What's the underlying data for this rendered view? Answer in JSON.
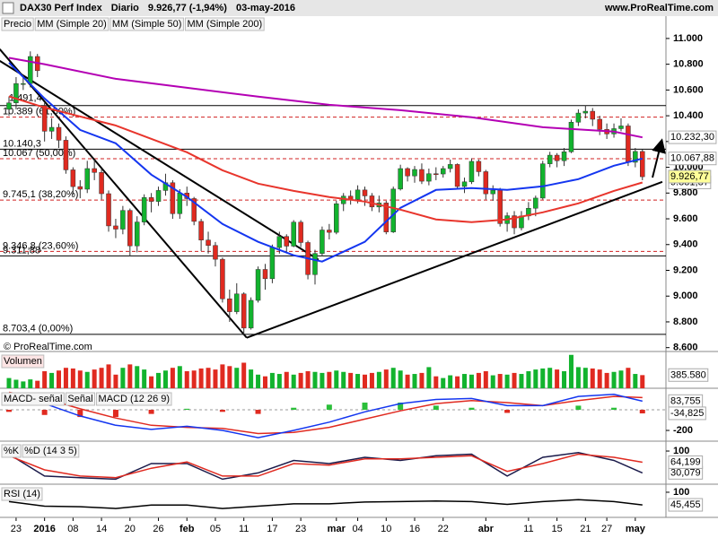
{
  "header": {
    "title": "DAX30 Perf Index",
    "period": "Diario",
    "change": "9.926,77 (-1,94%)",
    "date": "03-may-2016",
    "site": "www.ProRealTime.com"
  },
  "chart_data": [
    {
      "type": "candlestick",
      "price_name": "Precio",
      "copyright": "© ProRealTime.com",
      "up_color": "#12b32e",
      "down_color": "#e02a20",
      "categories": [
        null,
        "23",
        null,
        null,
        null,
        "2016",
        null,
        null,
        null,
        "08",
        null,
        null,
        null,
        "14",
        null,
        null,
        null,
        "20",
        null,
        null,
        null,
        "26",
        null,
        null,
        null,
        "feb",
        null,
        null,
        null,
        "05",
        null,
        null,
        null,
        "11",
        null,
        null,
        null,
        "17",
        null,
        null,
        null,
        "23",
        null,
        null,
        null,
        null,
        "mar",
        null,
        null,
        "04",
        null,
        null,
        null,
        "10",
        null,
        null,
        null,
        "16",
        null,
        null,
        null,
        "22",
        null,
        null,
        null,
        null,
        null,
        "abr",
        null,
        null,
        null,
        null,
        null,
        "11",
        null,
        null,
        null,
        "15",
        null,
        null,
        null,
        "21",
        null,
        null,
        "27",
        null,
        null,
        null,
        "may",
        null
      ],
      "open": [
        10450,
        10500,
        10650,
        10650,
        10860,
        10480,
        10280,
        10310,
        10210,
        9980,
        9850,
        9830,
        9990,
        9960,
        9795,
        9545,
        9520,
        9665,
        9390,
        9575,
        9765,
        9735,
        9820,
        9880,
        9640,
        9800,
        9757,
        9580,
        9435,
        9393,
        9286,
        8979,
        8879,
        9017,
        8752,
        8967,
        9207,
        9135,
        9377,
        9463,
        9388,
        9574,
        9416,
        9167,
        9331,
        9513,
        9495,
        9717,
        9776,
        9751,
        9824,
        9778,
        9692,
        9723,
        9498,
        9831,
        9990,
        9933,
        9983,
        9892,
        9950,
        9948,
        9990,
        10022,
        9851,
        9887,
        10046,
        9966,
        9794,
        9822,
        9563,
        9624,
        9530,
        9622,
        9682,
        9761,
        10027,
        10094,
        10051,
        10120,
        10350,
        10421,
        10435,
        10373,
        10294,
        10259,
        10300,
        10321,
        10039,
        10123
      ],
      "high": [
        10550,
        10700,
        10720,
        10900,
        10880,
        10500,
        10380,
        10340,
        10240,
        10000,
        9900,
        10050,
        10060,
        9990,
        9820,
        9600,
        9700,
        9680,
        9620,
        9790,
        9800,
        9850,
        9950,
        9900,
        9830,
        9850,
        9770,
        9600,
        9500,
        9420,
        9300,
        9050,
        9100,
        9030,
        8990,
        9230,
        9250,
        9400,
        9500,
        9480,
        9590,
        9590,
        9430,
        9360,
        9540,
        9560,
        9740,
        9800,
        9820,
        9860,
        9850,
        9800,
        9780,
        9740,
        9850,
        10020,
        10000,
        10010,
        10030,
        9990,
        10000,
        10010,
        10060,
        10030,
        9920,
        10070,
        10060,
        9980,
        9860,
        9840,
        9650,
        9660,
        9660,
        9730,
        9780,
        10050,
        10120,
        10110,
        10150,
        10370,
        10450,
        10480,
        10460,
        10400,
        10340,
        10340,
        10380,
        10340,
        10150,
        10140
      ],
      "low": [
        10400,
        10450,
        10600,
        10620,
        10700,
        10200,
        10220,
        10150,
        9950,
        9790,
        9760,
        9800,
        9900,
        9750,
        9500,
        9450,
        9480,
        9310,
        9340,
        9550,
        9650,
        9700,
        9780,
        9600,
        9600,
        9700,
        9550,
        9350,
        9330,
        9230,
        8950,
        8800,
        8860,
        8700,
        8740,
        8950,
        9050,
        9100,
        9330,
        9340,
        9380,
        9380,
        9130,
        9090,
        9310,
        9440,
        9480,
        9660,
        9710,
        9720,
        9700,
        9660,
        9650,
        9480,
        9490,
        9820,
        9890,
        9880,
        9870,
        9860,
        9900,
        9920,
        9960,
        9830,
        9800,
        9870,
        9930,
        9750,
        9740,
        9540,
        9500,
        9480,
        9510,
        9590,
        9620,
        9750,
        10000,
        10000,
        10010,
        10110,
        10320,
        10380,
        10320,
        10250,
        10220,
        10230,
        10280,
        10010,
        10000,
        9900
      ],
      "close": [
        10500,
        10650,
        10650,
        10860,
        10750,
        10280,
        10310,
        10210,
        9980,
        9850,
        9830,
        9990,
        9960,
        9795,
        9545,
        9520,
        9665,
        9390,
        9575,
        9765,
        9735,
        9820,
        9880,
        9640,
        9800,
        9757,
        9580,
        9435,
        9393,
        9286,
        8979,
        8879,
        9017,
        8752,
        8967,
        9207,
        9135,
        9377,
        9463,
        9388,
        9574,
        9416,
        9167,
        9331,
        9513,
        9495,
        9717,
        9776,
        9751,
        9824,
        9778,
        9692,
        9723,
        9498,
        9831,
        9990,
        9933,
        9983,
        9892,
        9950,
        9948,
        9990,
        10022,
        9851,
        9887,
        10046,
        9966,
        9794,
        9822,
        9563,
        9624,
        9530,
        9622,
        9682,
        9761,
        10027,
        10094,
        10051,
        10120,
        10350,
        10421,
        10435,
        10373,
        10294,
        10259,
        10300,
        10321,
        10039,
        10123,
        9926.77
      ],
      "close_label": "9.926,77",
      "series": [
        {
          "name": "MM (Simple 20)",
          "color": "#1436f0",
          "x": [
            0,
            5,
            10,
            15,
            20,
            25,
            30,
            35,
            40,
            44,
            50,
            55,
            60,
            65,
            70,
            75,
            80,
            85,
            89
          ],
          "values": [
            10812,
            10534,
            10290,
            10186,
            9943,
            9769,
            9560,
            9421,
            9317,
            9268,
            9421,
            9685,
            9824,
            9838,
            9824,
            9852,
            9908,
            10012,
            10067.88
          ],
          "last_label": "10.067,88"
        },
        {
          "name": "MM (Simple 50)",
          "color": "#e8352c",
          "x": [
            0,
            5,
            15,
            25,
            30,
            35,
            40,
            45,
            50,
            55,
            60,
            65,
            70,
            75,
            80,
            85,
            89
          ],
          "values": [
            10550,
            10464,
            10325,
            10117,
            9977,
            9873,
            9817,
            9769,
            9734,
            9671,
            9595,
            9574,
            9595,
            9650,
            9720,
            9817,
            9881.87
          ],
          "last_label": "9.881,87"
        },
        {
          "name": "MM (Simple 200)",
          "color": "#b400b4",
          "x": [
            0,
            5,
            15,
            25,
            35,
            45,
            55,
            65,
            75,
            85,
            89
          ],
          "values": [
            10850,
            10800,
            10687,
            10617,
            10548,
            10485,
            10443,
            10388,
            10311,
            10277,
            10232.3
          ],
          "last_label": "10.232,30"
        }
      ],
      "levels": [
        {
          "value": 10479,
          "dashed": false
        },
        {
          "value": 10389,
          "label": "10.389 (61,80%)",
          "dashed": true
        },
        {
          "value": 10140.3,
          "label": "10.140,3",
          "dashed": false
        },
        {
          "value": 10067,
          "label": "10.067 (50,00%)",
          "dashed": true
        },
        {
          "value": 9745.1,
          "label": "9.745,1 (38,20%)",
          "dashed": true
        },
        {
          "value": 9346.8,
          "label": "9.346,8 (23,60%)",
          "dashed": true
        },
        {
          "value": 9311.88,
          "label": "9.311,88",
          "dashed": false
        },
        {
          "value": 8703.4,
          "label": "8.703,4 (0,00%)",
          "dashed": false
        }
      ],
      "annotation": "1.491,4",
      "trendlines": [
        {
          "x": [
            -1.3,
            33.4
          ],
          "y": [
            10917,
            8677
          ]
        },
        {
          "x": [
            -1.3,
            43.5
          ],
          "y": [
            10826,
            9282
          ]
        },
        {
          "x": [
            33.4,
            91.8
          ],
          "y": [
            8677,
            9887
          ]
        }
      ],
      "ylim": [
        8570,
        11055
      ],
      "yticks": [
        {
          "value": 8600,
          "label": "8.600"
        },
        {
          "value": 8800,
          "label": "8.800"
        },
        {
          "value": 9000,
          "label": "9.000"
        },
        {
          "value": 9200,
          "label": "9.200"
        },
        {
          "value": 9400,
          "label": "9.400"
        },
        {
          "value": 9600,
          "label": "9.600"
        },
        {
          "value": 9800,
          "label": "9.800"
        },
        {
          "value": 10000,
          "label": "10.000"
        },
        {
          "value": 10200,
          "label": "10.200"
        },
        {
          "value": 10400,
          "label": "10.400"
        },
        {
          "value": 10600,
          "label": "10.600"
        },
        {
          "value": 10800,
          "label": "10.800"
        },
        {
          "value": 11000,
          "label": "11.000"
        }
      ]
    },
    {
      "type": "bar",
      "label": "Volumen",
      "values": [
        300000,
        250000,
        200000,
        260000,
        220000,
        500000,
        450000,
        520000,
        600000,
        580000,
        520000,
        480000,
        550000,
        600000,
        700000,
        400000,
        600000,
        700000,
        650000,
        550000,
        350000,
        450000,
        520000,
        600000,
        650000,
        500000,
        520000,
        580000,
        600000,
        550000,
        700000,
        650000,
        600000,
        750000,
        550000,
        400000,
        350000,
        450000,
        420000,
        480000,
        400000,
        450000,
        500000,
        480000,
        450000,
        480000,
        520000,
        480000,
        450000,
        420000,
        400000,
        450000,
        480000,
        550000,
        600000,
        520000,
        400000,
        420000,
        450000,
        620000,
        350000,
        300000,
        380000,
        350000,
        420000,
        400000,
        450000,
        500000,
        380000,
        420000,
        400000,
        450000,
        420000,
        500000,
        550000,
        580000,
        600000,
        550000,
        500000,
        980000,
        620000,
        600000,
        580000,
        550000,
        450000,
        480000,
        520000,
        600000,
        420000,
        385580
      ],
      "last_label": "385.580",
      "ylim": [
        0,
        1000000
      ]
    },
    {
      "type": "macd",
      "histogram": {
        "name": "MACD- señal",
        "color": "#e02a20",
        "x": [
          0,
          5,
          10,
          15,
          20,
          25,
          30,
          35,
          40,
          45,
          50,
          55,
          60,
          65,
          70,
          75,
          80,
          85,
          89
        ],
        "values": [
          -20,
          -50,
          -70,
          -70,
          -40,
          10,
          -20,
          -40,
          20,
          50,
          70,
          70,
          40,
          20,
          -30,
          0,
          40,
          20,
          -34.825
        ],
        "last_label": "-34,825"
      },
      "series": [
        {
          "name": "Señal",
          "color": "#e02a20",
          "x": [
            0,
            5,
            10,
            15,
            20,
            25,
            30,
            35,
            40,
            45,
            50,
            55,
            60,
            65,
            70,
            75,
            80,
            85,
            89
          ],
          "values": [
            170,
            110,
            10,
            -80,
            -150,
            -170,
            -180,
            -230,
            -220,
            -170,
            -90,
            -10,
            60,
            90,
            70,
            40,
            90,
            130,
            118.58
          ]
        },
        {
          "name": "MACD (12 26 9)",
          "color": "#1436f0",
          "x": [
            0,
            5,
            10,
            15,
            20,
            25,
            30,
            35,
            40,
            45,
            50,
            55,
            60,
            65,
            70,
            75,
            80,
            85,
            89
          ],
          "values": [
            150,
            60,
            -60,
            -150,
            -190,
            -160,
            -200,
            -270,
            -200,
            -120,
            -20,
            60,
            100,
            110,
            40,
            40,
            130,
            150,
            83.755
          ],
          "last_label": "83,755"
        }
      ],
      "ylim": [
        -304,
        174
      ],
      "yticks": [
        -200
      ]
    },
    {
      "type": "line",
      "series": [
        {
          "name": "%K",
          "color": "#1a1a4a",
          "x": [
            0,
            5,
            10,
            15,
            20,
            25,
            30,
            35,
            40,
            45,
            50,
            55,
            60,
            65,
            70,
            75,
            80,
            85,
            89
          ],
          "values": [
            90,
            20,
            15,
            10,
            60,
            60,
            10,
            30,
            70,
            60,
            80,
            70,
            85,
            90,
            20,
            80,
            95,
            70,
            30.079
          ],
          "last_label": "30,079"
        },
        {
          "name": "%D (14 3 5)",
          "color": "#e02a20",
          "x": [
            0,
            5,
            10,
            15,
            20,
            25,
            30,
            35,
            40,
            45,
            50,
            55,
            60,
            65,
            70,
            75,
            80,
            85,
            89
          ],
          "values": [
            85,
            40,
            20,
            15,
            45,
            65,
            20,
            20,
            60,
            55,
            75,
            75,
            80,
            85,
            35,
            60,
            90,
            80,
            64.199
          ],
          "last_label": "64,199"
        }
      ],
      "ylim": [
        -6,
        123
      ],
      "yticks": [
        100
      ]
    },
    {
      "type": "line",
      "series": [
        {
          "name": "RSI (14)",
          "color": "#000000",
          "x": [
            0,
            5,
            10,
            15,
            20,
            25,
            30,
            35,
            40,
            45,
            50,
            55,
            60,
            65,
            70,
            75,
            80,
            85,
            89
          ],
          "values": [
            60,
            40,
            38,
            30,
            45,
            45,
            30,
            40,
            50,
            50,
            58,
            60,
            62,
            60,
            48,
            60,
            68,
            60,
            45.455
          ],
          "last_label": "45,455"
        }
      ],
      "ylim": [
        -8,
        123
      ],
      "yticks": [
        100
      ]
    }
  ]
}
